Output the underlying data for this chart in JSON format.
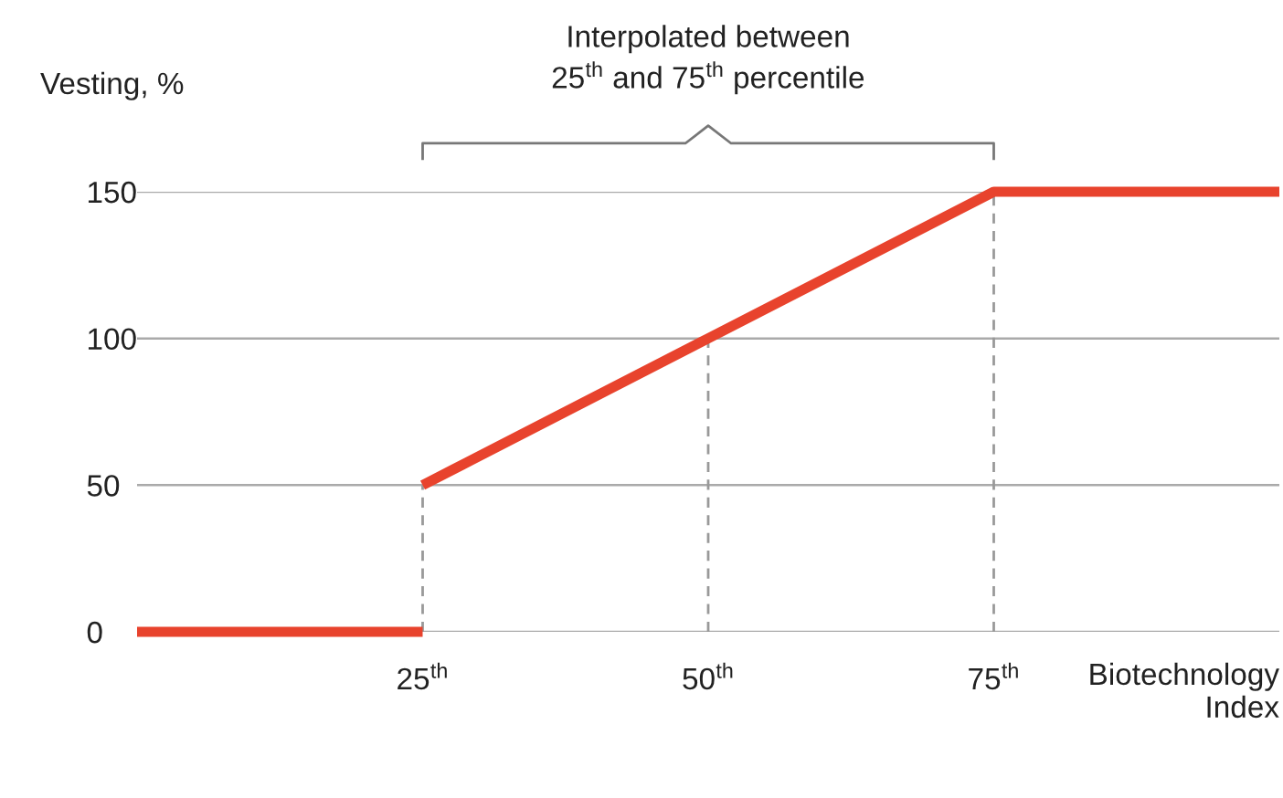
{
  "chart_data": {
    "type": "line",
    "ylabel": "Vesting, %",
    "xlabel": "Biotechnology\nIndex",
    "annotations": [
      "Interpolated between\n25$^{th}$ and 75$^{th}$ percentile"
    ],
    "series": [
      {
        "x": [
          0,
          25
        ],
        "values": [
          0,
          0
        ],
        "color": "#e8432d"
      },
      {
        "x": [
          25,
          50,
          75,
          100
        ],
        "values": [
          50,
          100,
          150,
          150
        ],
        "color": "#e8432d"
      }
    ],
    "xlim": [
      0,
      100
    ],
    "xticks": [
      {
        "value": 25,
        "label": "25$^{th}$"
      },
      {
        "value": 50,
        "label": "50$^{th}$"
      },
      {
        "value": 75,
        "label": "75$^{th}$"
      }
    ],
    "ylim": [
      0,
      150
    ],
    "yticks": [
      0,
      50,
      100,
      150
    ],
    "grid": "y",
    "marker": "none",
    "line_style": "solid",
    "ref_lines": [
      {
        "axis": "x",
        "value": 25,
        "color": "#999999",
        "line_style": "dashed"
      },
      {
        "axis": "x",
        "value": 50,
        "color": "#999999",
        "line_style": "dashed"
      },
      {
        "axis": "x",
        "value": 75,
        "color": "#999999",
        "line_style": "dashed"
      }
    ]
  }
}
